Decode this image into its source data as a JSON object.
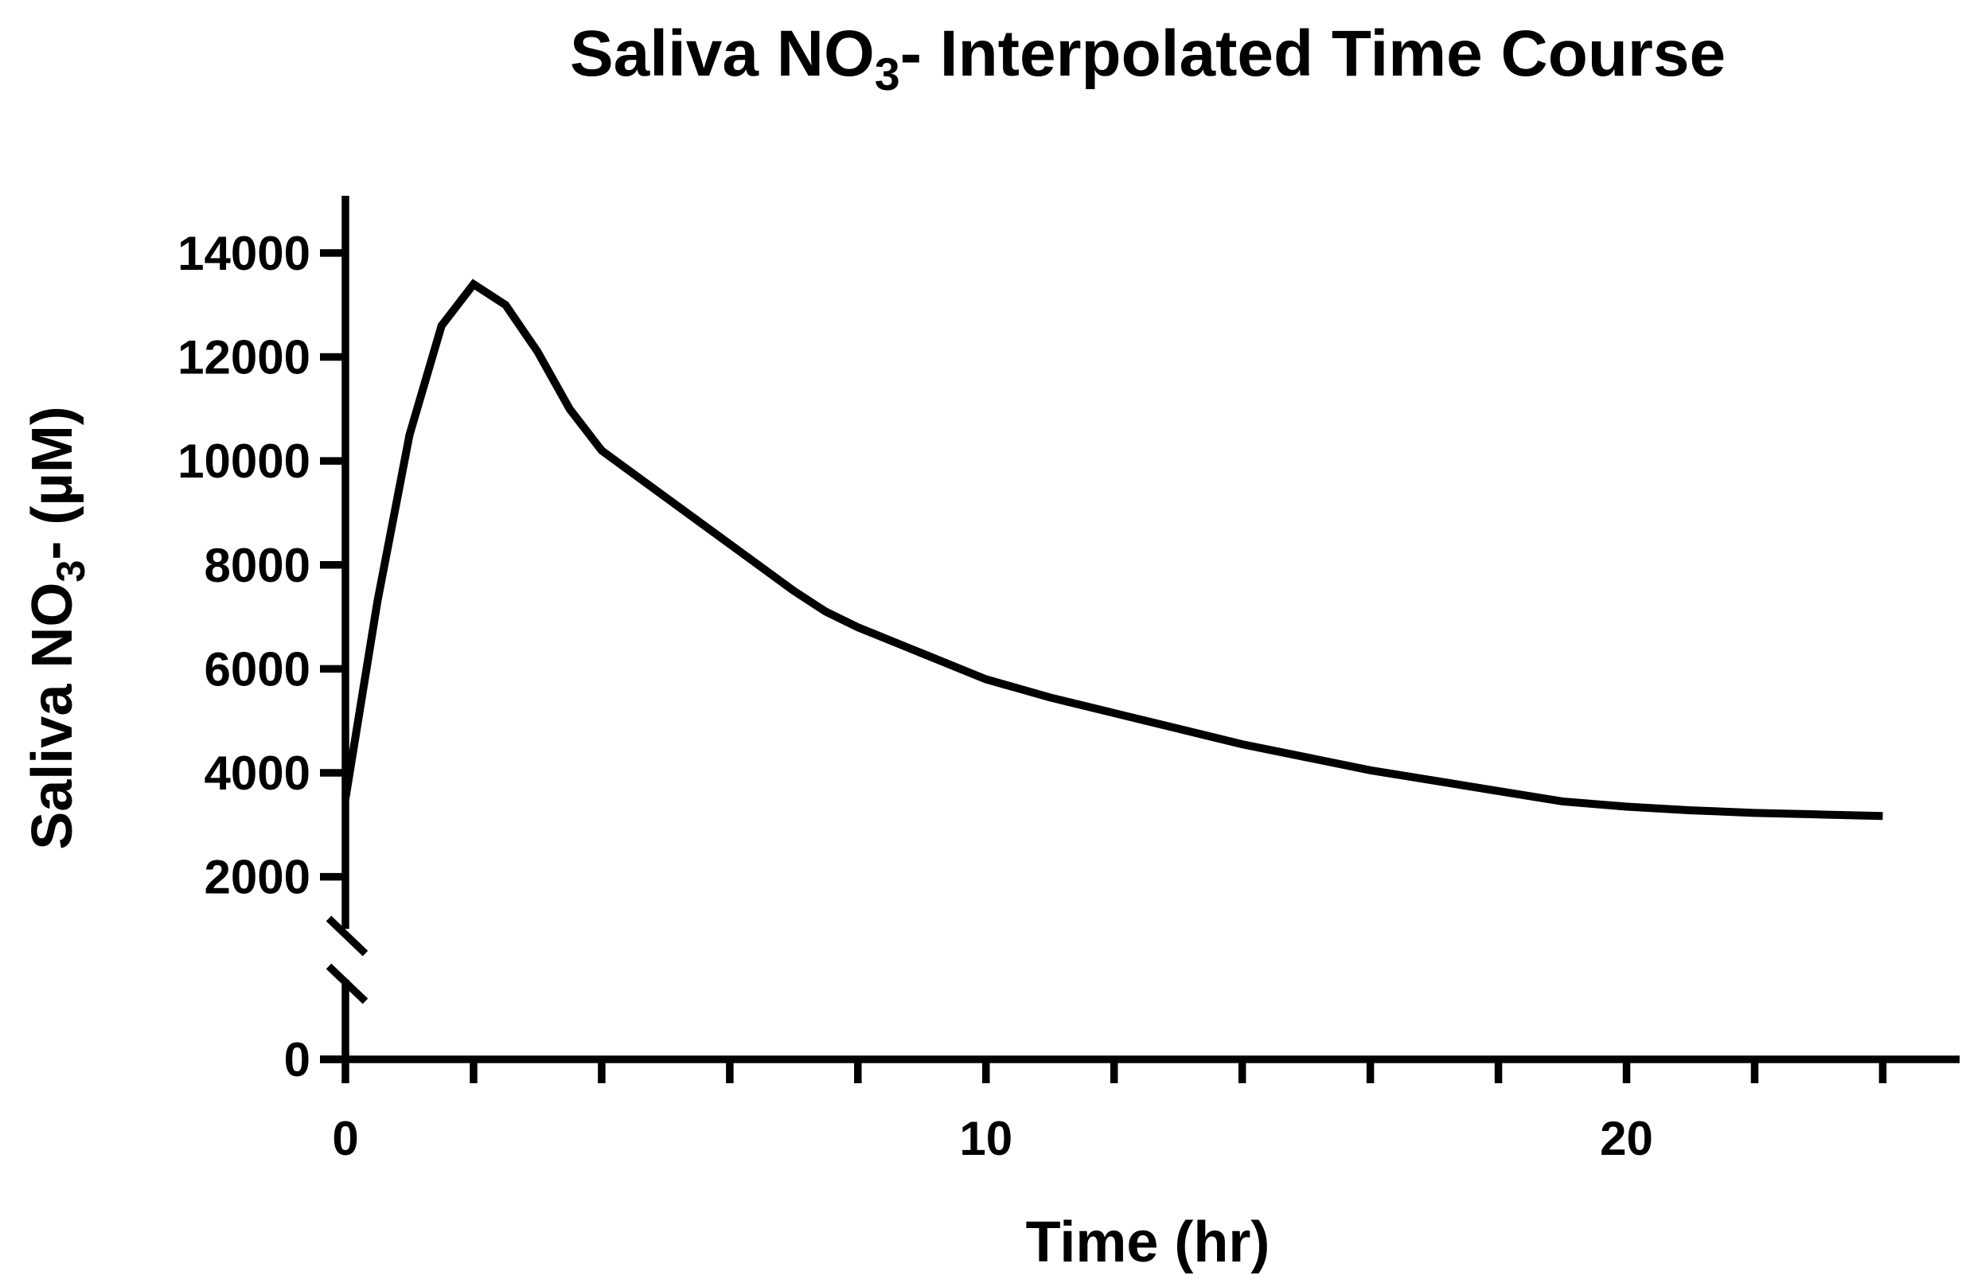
{
  "chart_data": {
    "type": "line",
    "title": [
      "Saliva NO",
      "3",
      "- Interpolated Time Course"
    ],
    "x_label": "Time (hr)",
    "y_label": [
      "Saliva NO",
      "3",
      "- (µM)"
    ],
    "xlim": [
      0,
      25.2
    ],
    "xticks": [
      0,
      10,
      20
    ],
    "xminorticks": [
      2,
      4,
      6,
      8,
      12,
      14,
      16,
      18,
      22,
      24
    ],
    "y_segments": [
      {
        "ylim": [
          0,
          1000
        ],
        "yticks": [
          0
        ]
      },
      {
        "ylim": [
          1000,
          15100
        ],
        "yticks": [
          2000,
          4000,
          6000,
          8000,
          10000,
          12000,
          14000
        ]
      }
    ],
    "x": [
      0,
      0.5,
      1,
      1.5,
      2,
      2.5,
      3,
      3.5,
      4,
      5,
      6,
      7,
      7.5,
      8,
      9,
      10,
      11,
      12,
      13,
      14,
      15,
      16,
      17,
      18,
      19,
      20,
      21,
      22,
      23,
      24
    ],
    "series": [
      {
        "color": "#000000",
        "values": [
          3500,
          7300,
          10500,
          12600,
          13400,
          13000,
          12100,
          11000,
          10200,
          9300,
          8400,
          7500,
          7100,
          6800,
          6300,
          5800,
          5450,
          5150,
          4850,
          4550,
          4300,
          4050,
          3850,
          3650,
          3450,
          3350,
          3280,
          3230,
          3200,
          3170
        ]
      }
    ]
  }
}
